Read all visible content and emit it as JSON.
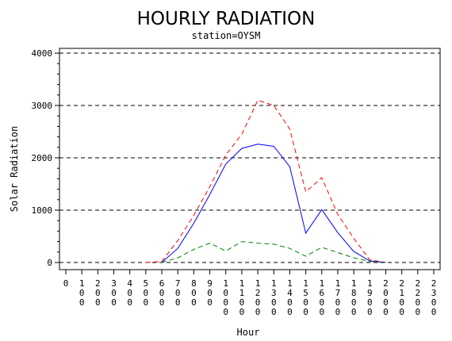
{
  "chart_data": {
    "type": "line",
    "title": "HOURLY RADIATION",
    "subtitle": "station=OYSM",
    "xlabel": "Hour",
    "ylabel": "Solar Radiation",
    "xlim": [
      0,
      2300
    ],
    "ylim": [
      0,
      4000
    ],
    "xticks": [
      "0",
      "100",
      "200",
      "300",
      "400",
      "500",
      "600",
      "700",
      "800",
      "900",
      "1000",
      "1100",
      "1200",
      "1300",
      "1400",
      "1500",
      "1600",
      "1700",
      "1800",
      "1900",
      "2000",
      "2100",
      "2200",
      "2300"
    ],
    "xtick_values": [
      0,
      100,
      200,
      300,
      400,
      500,
      600,
      700,
      800,
      900,
      1000,
      1100,
      1200,
      1300,
      1400,
      1500,
      1600,
      1700,
      1800,
      1900,
      2000,
      2100,
      2200,
      2300
    ],
    "yticks": [
      "0",
      "1000",
      "2000",
      "3000",
      "4000"
    ],
    "ytick_values": [
      0,
      1000,
      2000,
      3000,
      4000
    ],
    "grid": "horizontal-dashed",
    "series": [
      {
        "color": "#ff0000",
        "style": "dashed",
        "x": [
          500,
          600,
          700,
          800,
          900,
          1000,
          1100,
          1200,
          1300,
          1400,
          1500,
          1600,
          1700,
          1800,
          1900,
          2000
        ],
        "y": [
          0,
          20,
          420,
          900,
          1450,
          2050,
          2450,
          3100,
          3000,
          2550,
          1350,
          1620,
          920,
          460,
          50,
          0
        ]
      },
      {
        "color": "#0000ff",
        "style": "solid",
        "x": [
          600,
          700,
          800,
          900,
          1000,
          1100,
          1200,
          1300,
          1400,
          1500,
          1600,
          1700,
          1800,
          1900,
          2000
        ],
        "y": [
          0,
          270,
          750,
          1300,
          1880,
          2180,
          2260,
          2220,
          1830,
          560,
          1010,
          570,
          210,
          30,
          0
        ]
      },
      {
        "color": "#008000",
        "style": "dashed",
        "x": [
          600,
          700,
          800,
          900,
          1000,
          1100,
          1200,
          1300,
          1400,
          1500,
          1600,
          1700,
          1800,
          1900,
          2000
        ],
        "y": [
          0,
          90,
          250,
          370,
          220,
          400,
          370,
          350,
          270,
          120,
          290,
          190,
          90,
          20,
          0
        ]
      }
    ]
  }
}
